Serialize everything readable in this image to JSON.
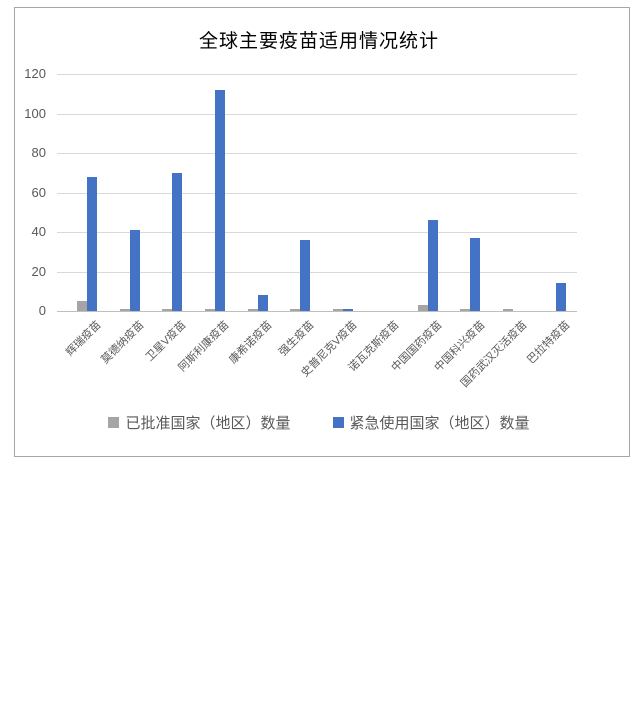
{
  "title": "全球主要疫苗适用情况统计",
  "colors": {
    "approved_series": "#A5A5A5",
    "emergency_series": "#4472C4",
    "gridline": "#D9D9D9",
    "axis_line": "#BFBFBF",
    "axis_text": "#595959",
    "border": "#A6A6A6",
    "title_text": "#000000"
  },
  "chart_data": {
    "type": "bar",
    "title": "全球主要疫苗适用情况统计",
    "categories": [
      "辉瑞疫苗",
      "莫德纳疫苗",
      "卫星V疫苗",
      "阿斯利康疫苗",
      "康希诺疫苗",
      "强生疫苗",
      "史普尼克V疫苗",
      "诺瓦克斯疫苗",
      "中国国药疫苗",
      "中国科兴疫苗",
      "国药武汉灭活疫苗",
      "巴拉特疫苗"
    ],
    "series": [
      {
        "name": "已批准国家（地区）数量",
        "color": "#A5A5A5",
        "values": [
          5,
          1,
          1,
          1,
          1,
          1,
          1,
          0,
          3,
          1,
          1,
          0
        ]
      },
      {
        "name": "紧急使用国家（地区）数量",
        "color": "#4472C4",
        "values": [
          68,
          41,
          70,
          112,
          8,
          36,
          1,
          0,
          46,
          37,
          0,
          14
        ]
      }
    ],
    "xlabel": "",
    "ylabel": "",
    "ylim": [
      0,
      120
    ],
    "yticks": [
      0,
      20,
      40,
      60,
      80,
      100,
      120
    ],
    "grid": true,
    "legend_position": "bottom",
    "bar_orientation": "vertical"
  }
}
